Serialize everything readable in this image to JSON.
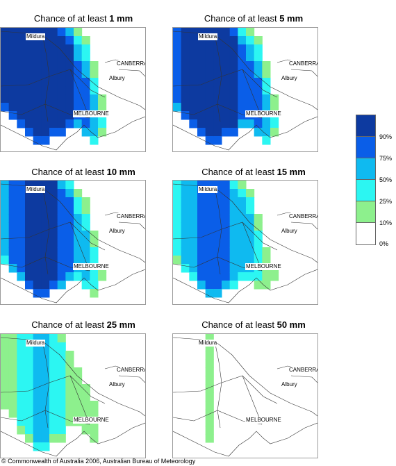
{
  "panels": [
    {
      "prefix": "Chance of at least ",
      "amount": "1 mm",
      "category": [
        5,
        5,
        5,
        5,
        5,
        5,
        5,
        5,
        5,
        4,
        4,
        3,
        2,
        1,
        0,
        0,
        0,
        0
      ]
    },
    {
      "prefix": "Chance of at least ",
      "amount": "5 mm",
      "category": [
        4,
        5,
        5,
        5,
        5,
        5,
        5,
        5,
        4,
        4,
        4,
        3,
        2,
        1,
        0,
        0,
        0,
        0
      ]
    },
    {
      "prefix": "Chance of at least ",
      "amount": "10 mm",
      "category": [
        3,
        4,
        4,
        5,
        5,
        5,
        5,
        4,
        4,
        3,
        3,
        2,
        1,
        0,
        0,
        0,
        0,
        0
      ]
    },
    {
      "prefix": "Chance of at least ",
      "amount": "15 mm",
      "category": [
        2,
        3,
        3,
        4,
        4,
        4,
        4,
        3,
        3,
        3,
        2,
        1,
        1,
        0,
        0,
        0,
        0,
        0
      ]
    },
    {
      "prefix": "Chance of at least ",
      "amount": "25 mm",
      "category": [
        1,
        1,
        2,
        2,
        3,
        3,
        2,
        2,
        1,
        1,
        1,
        1,
        0,
        0,
        0,
        0,
        0,
        0
      ]
    },
    {
      "prefix": "Chance of at least ",
      "amount": "50 mm",
      "category": [
        0,
        0,
        0,
        0,
        1,
        0,
        0,
        0,
        0,
        0,
        0,
        0,
        0,
        0,
        0,
        0,
        0,
        0
      ]
    }
  ],
  "places": {
    "mildura": "Mildura",
    "canberra": "CANBERRA",
    "albury": "Albury",
    "melbourne": "MELBOURNE"
  },
  "legend": {
    "labels": [
      "90%",
      "75%",
      "50%",
      "25%",
      "10%",
      "0%"
    ],
    "colors": [
      "#0d3aa0",
      "#0a5ee8",
      "#0fbaf0",
      "#2cf6f2",
      "#8df08d",
      "#ffffff"
    ]
  },
  "copyright": "© Commonwealth of Australia 2006, Australian Bureau of Meteorology"
}
